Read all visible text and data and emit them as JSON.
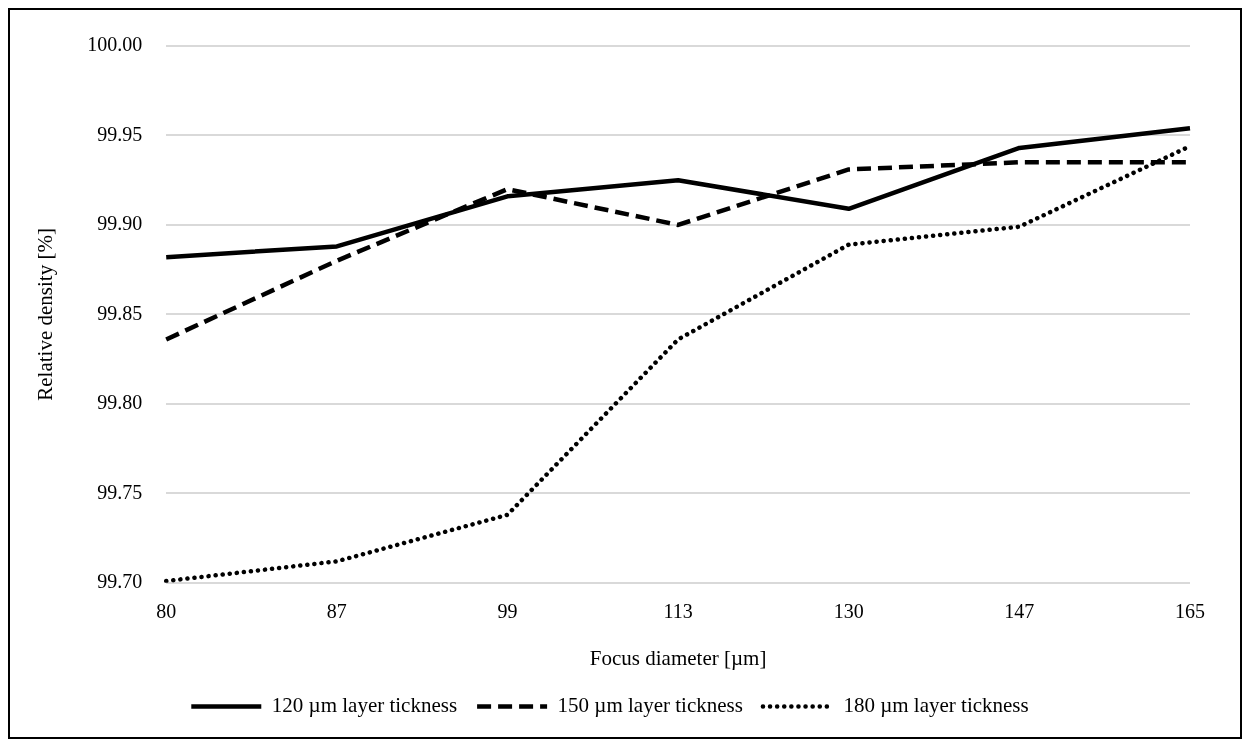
{
  "chart_data": {
    "type": "line",
    "xlabel": "Focus diameter [µm]",
    "ylabel": "Relative density [%]",
    "categories": [
      "80",
      "87",
      "99",
      "113",
      "130",
      "147",
      "165"
    ],
    "series": [
      {
        "name": "120 µm layer tickness",
        "color": "#000000",
        "line_style": "solid",
        "values": [
          99.882,
          99.888,
          99.916,
          99.925,
          99.909,
          99.943,
          99.954
        ]
      },
      {
        "name": "150 µm layer tickness",
        "color": "#000000",
        "line_style": "dashed",
        "values": [
          99.836,
          99.88,
          99.92,
          99.9,
          99.931,
          99.935,
          99.935
        ]
      },
      {
        "name": "180 µm layer tickness",
        "color": "#000000",
        "line_style": "dotted",
        "values": [
          99.701,
          99.712,
          99.738,
          99.836,
          99.889,
          99.899,
          99.944
        ]
      }
    ],
    "ylim": [
      99.7,
      100
    ],
    "yticks": [
      {
        "value": 99.7,
        "label": "99.70"
      },
      {
        "value": 99.75,
        "label": "99.75"
      },
      {
        "value": 99.8,
        "label": "99.80"
      },
      {
        "value": 99.85,
        "label": "99.85"
      },
      {
        "value": 99.9,
        "label": "99.90"
      },
      {
        "value": 99.95,
        "label": "99.95"
      },
      {
        "value": 100,
        "label": "100.00"
      }
    ],
    "grid": "y",
    "legend": "bottom",
    "marker": "none"
  }
}
